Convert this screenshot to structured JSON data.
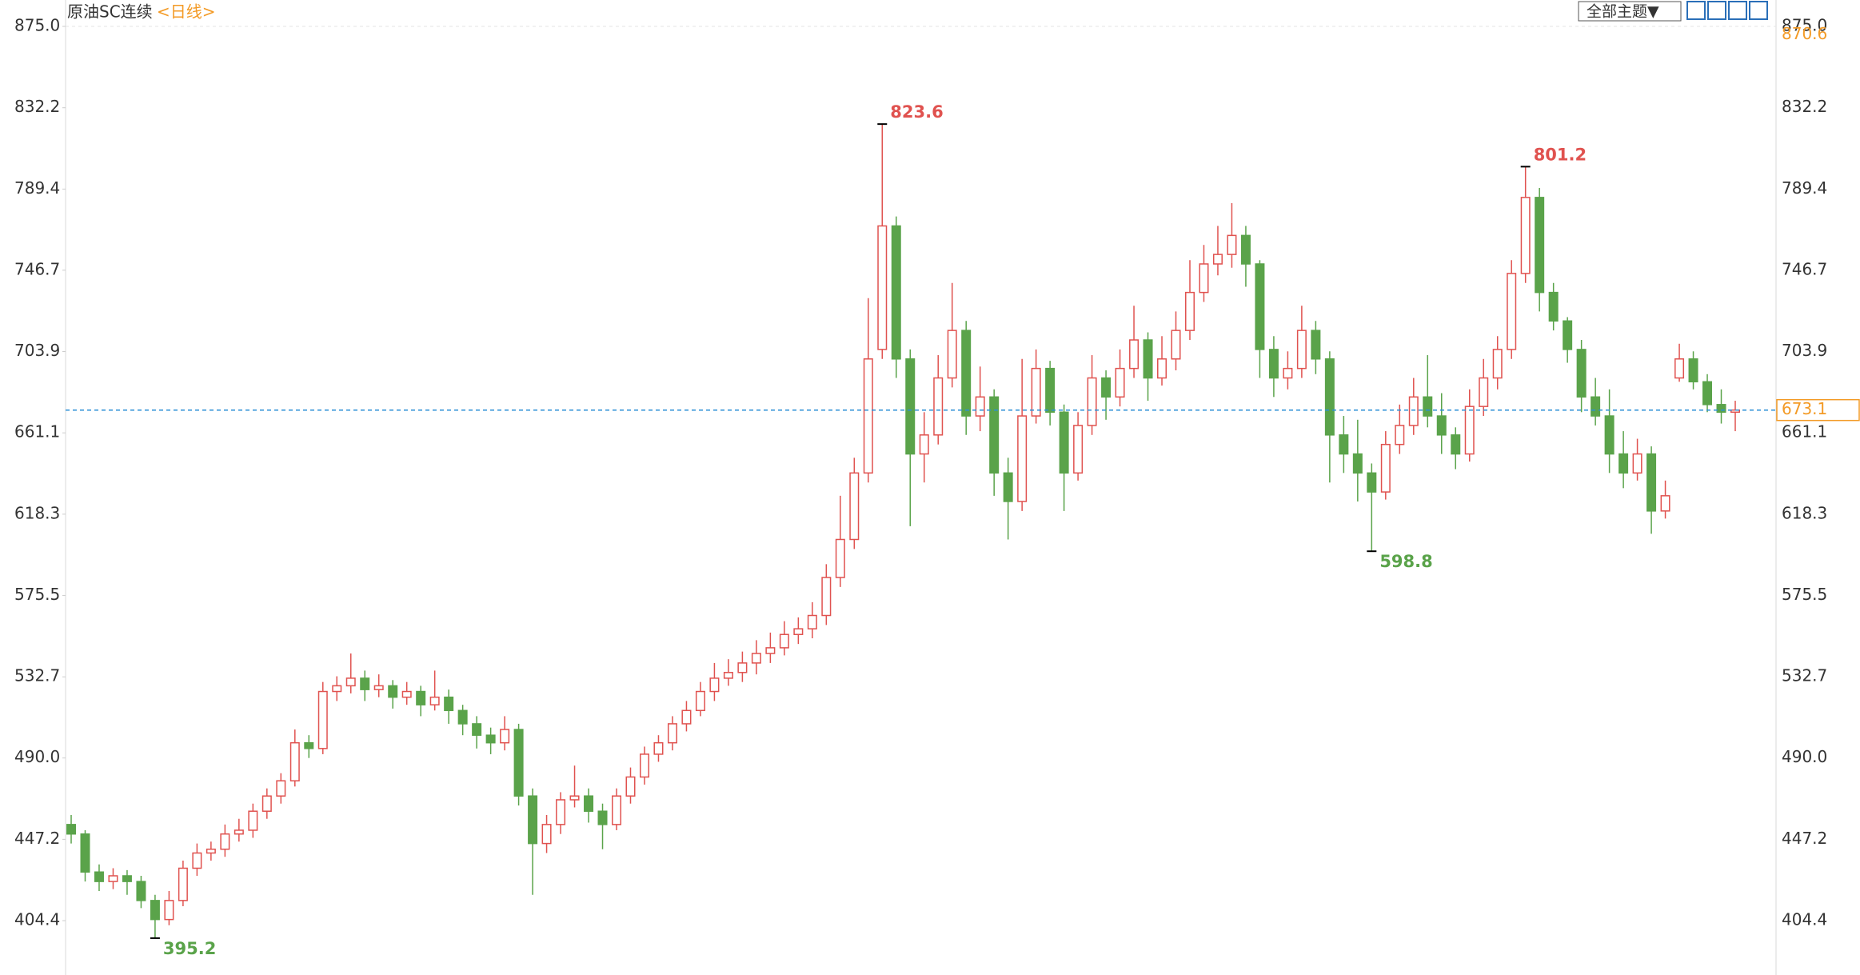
{
  "chart_data": {
    "type": "candlestick",
    "title": "原油SC连续",
    "period": "<日线>",
    "toolbar": "全部主题▼",
    "up_color": "#e0524f",
    "down_color": "#5aa34a",
    "price_line_color": "#2a8fd6",
    "marker_color": "#f39a25",
    "ylim": [
      375.8,
      888.9
    ],
    "yticks": [
      {
        "value": 875,
        "label": "875.0"
      },
      832.2,
      789.4,
      746.7,
      703.9,
      661.1,
      618.3,
      575.5,
      532.7,
      {
        "value": 490,
        "label": "490.0"
      },
      447.2,
      404.4
    ],
    "grid": false,
    "right_axis_marker": 870.6,
    "candles": {
      "open": [
        455,
        450,
        430,
        425,
        428,
        425,
        415,
        405,
        415,
        432,
        440,
        442,
        450,
        452,
        462,
        470,
        478,
        498,
        495,
        525,
        528,
        532,
        526,
        528,
        522,
        525,
        518,
        522,
        515,
        508,
        502,
        498,
        505,
        470,
        445,
        455,
        468,
        470,
        462,
        455,
        470,
        480,
        492,
        498,
        508,
        515,
        525,
        532,
        535,
        540,
        545,
        548,
        555,
        558,
        565,
        585,
        605,
        640,
        705,
        770,
        700,
        650,
        660,
        690,
        715,
        670,
        680,
        640,
        625,
        670,
        695,
        672,
        640,
        665,
        690,
        680,
        695,
        710,
        690,
        700,
        715,
        735,
        750,
        755,
        765,
        750,
        705,
        690,
        695,
        715,
        700,
        660,
        650,
        640,
        630,
        655,
        665,
        680,
        670,
        660,
        650,
        675,
        690,
        705,
        745,
        785,
        735,
        720,
        705,
        680,
        670,
        650,
        640,
        650,
        620,
        690,
        700,
        688,
        676,
        672
      ],
      "high": [
        460,
        452,
        434,
        432,
        431,
        428,
        418,
        420,
        436,
        445,
        446,
        455,
        458,
        466,
        474,
        482,
        505,
        502,
        530,
        533,
        545,
        536,
        534,
        531,
        530,
        528,
        536,
        526,
        518,
        512,
        506,
        512,
        508,
        474,
        460,
        472,
        486,
        474,
        466,
        474,
        485,
        496,
        502,
        512,
        520,
        530,
        540,
        542,
        546,
        552,
        556,
        562,
        564,
        572,
        592,
        628,
        648,
        732,
        823.6,
        775,
        705,
        672,
        702,
        740,
        720,
        696,
        684,
        648,
        700,
        705,
        699,
        676,
        672,
        702,
        694,
        705,
        728,
        714,
        712,
        725,
        752,
        760,
        770,
        782,
        770,
        752,
        712,
        704,
        728,
        720,
        704,
        670,
        668,
        645,
        662,
        676,
        690,
        702,
        682,
        664,
        684,
        700,
        712,
        752,
        801.2,
        790,
        740,
        722,
        710,
        690,
        684,
        662,
        658,
        654,
        636,
        708,
        704,
        692,
        684,
        678
      ],
      "low": [
        445,
        425,
        420,
        421,
        418,
        411,
        395.2,
        402,
        412,
        428,
        436,
        438,
        446,
        448,
        458,
        466,
        475,
        490,
        492,
        520,
        524,
        520,
        522,
        516,
        518,
        512,
        515,
        508,
        502,
        495,
        492,
        494,
        465,
        418,
        440,
        450,
        464,
        456,
        442,
        452,
        466,
        476,
        488,
        494,
        504,
        512,
        520,
        528,
        530,
        534,
        540,
        544,
        550,
        553,
        560,
        580,
        600,
        635,
        700,
        690,
        612,
        635,
        655,
        685,
        660,
        662,
        628,
        605,
        620,
        666,
        665,
        620,
        636,
        660,
        668,
        675,
        690,
        678,
        686,
        694,
        710,
        730,
        744,
        748,
        738,
        690,
        680,
        684,
        690,
        692,
        635,
        640,
        625,
        598.8,
        626,
        650,
        660,
        664,
        650,
        642,
        646,
        670,
        684,
        700,
        740,
        725,
        715,
        698,
        672,
        665,
        640,
        632,
        636,
        608,
        616,
        688,
        684,
        672,
        666,
        662
      ],
      "close": [
        450,
        430,
        425,
        428,
        425,
        415,
        405,
        415,
        432,
        440,
        442,
        450,
        452,
        462,
        470,
        478,
        498,
        495,
        525,
        528,
        532,
        526,
        528,
        522,
        525,
        518,
        522,
        515,
        508,
        502,
        498,
        505,
        470,
        445,
        455,
        468,
        470,
        462,
        455,
        470,
        480,
        492,
        498,
        508,
        515,
        525,
        532,
        535,
        540,
        545,
        548,
        555,
        558,
        565,
        585,
        605,
        640,
        700,
        770,
        700,
        650,
        660,
        690,
        715,
        670,
        680,
        640,
        625,
        670,
        695,
        672,
        640,
        665,
        690,
        680,
        695,
        710,
        690,
        700,
        715,
        735,
        750,
        755,
        765,
        750,
        705,
        690,
        695,
        715,
        700,
        660,
        650,
        640,
        630,
        655,
        665,
        680,
        670,
        660,
        650,
        675,
        690,
        705,
        745,
        785,
        735,
        720,
        705,
        680,
        670,
        650,
        640,
        650,
        620,
        628,
        700,
        688,
        676,
        672,
        673.1
      ]
    }
  }
}
